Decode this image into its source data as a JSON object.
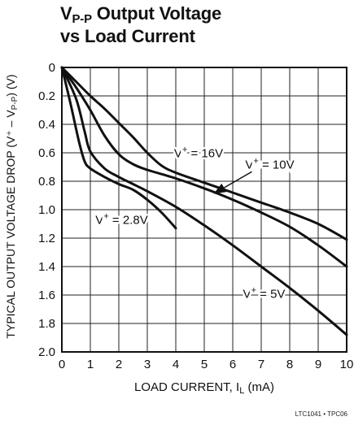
{
  "chart_data": {
    "type": "line",
    "title_line1_main": "V",
    "title_line1_sub": "P-P",
    "title_line1_rest": " Output Voltage",
    "title_line2": "vs Load Current",
    "xlabel": "LOAD CURRENT, I",
    "xlabel_sub": "L",
    "xlabel_unit": " (mA)",
    "ylabel": "TYPICAL OUTPUT VOLTAGE DROP (V⁺ – V",
    "ylabel_sub": "P-P",
    "ylabel_end": ") (V)",
    "xlim": [
      0,
      10
    ],
    "ylim": [
      0,
      2.0
    ],
    "y_inverted": true,
    "grid": true,
    "x_ticks": [
      "0",
      "1",
      "2",
      "3",
      "4",
      "5",
      "6",
      "7",
      "8",
      "9",
      "10"
    ],
    "y_ticks": [
      "0",
      "0.2",
      "0.4",
      "0.6",
      "0.8",
      "1.0",
      "1.2",
      "1.4",
      "1.6",
      "1.8",
      "2.0"
    ],
    "series": [
      {
        "name": "V⁺ = 16V",
        "label_v": "V",
        "label_sup": "+",
        "label_rest": " = 16V",
        "x": [
          0,
          0.5,
          1,
          1.5,
          2,
          2.5,
          3,
          3.5,
          4,
          5,
          6,
          7,
          8,
          9,
          10
        ],
        "y": [
          0,
          0.1,
          0.2,
          0.29,
          0.39,
          0.49,
          0.6,
          0.69,
          0.74,
          0.81,
          0.88,
          0.95,
          1.02,
          1.1,
          1.21
        ]
      },
      {
        "name": "V⁺ = 10V",
        "label_v": "V",
        "label_sup": "+",
        "label_rest": " = 10V",
        "x": [
          0,
          0.5,
          1,
          1.5,
          2,
          2.5,
          3,
          4,
          5,
          6,
          7,
          8,
          9,
          10
        ],
        "y": [
          0,
          0.14,
          0.3,
          0.48,
          0.61,
          0.68,
          0.72,
          0.78,
          0.85,
          0.93,
          1.02,
          1.12,
          1.25,
          1.4
        ]
      },
      {
        "name": "V⁺ = 5V",
        "label_v": "V",
        "label_sup": "+",
        "label_rest": " = 5V",
        "x": [
          0,
          0.5,
          0.8,
          1,
          1.5,
          2,
          2.5,
          3,
          4,
          5,
          6,
          7,
          8,
          9,
          10
        ],
        "y": [
          0,
          0.22,
          0.45,
          0.59,
          0.71,
          0.77,
          0.82,
          0.87,
          0.98,
          1.11,
          1.25,
          1.4,
          1.55,
          1.71,
          1.88
        ]
      },
      {
        "name": "V⁺ = 2.8V",
        "label_v": "V",
        "label_sup": "+",
        "label_rest": " = 2.8V",
        "x": [
          0,
          0.3,
          0.6,
          0.8,
          1,
          1.5,
          2,
          2.5,
          3,
          3.5,
          4
        ],
        "y": [
          0,
          0.25,
          0.52,
          0.66,
          0.71,
          0.77,
          0.82,
          0.86,
          0.93,
          1.02,
          1.13
        ]
      }
    ],
    "annotations": [
      {
        "series": "V⁺ = 16V",
        "at": [
          4.8,
          0.63
        ]
      },
      {
        "series": "V⁺ = 10V",
        "at": [
          7.3,
          0.71
        ],
        "arrow_to": [
          5.4,
          0.88
        ]
      },
      {
        "series": "V⁺ = 5V",
        "at": [
          7.1,
          1.62
        ]
      },
      {
        "series": "V⁺ = 2.8V",
        "at": [
          2.1,
          1.1
        ]
      }
    ],
    "figure_code": "LTC1041 • TPC06"
  }
}
